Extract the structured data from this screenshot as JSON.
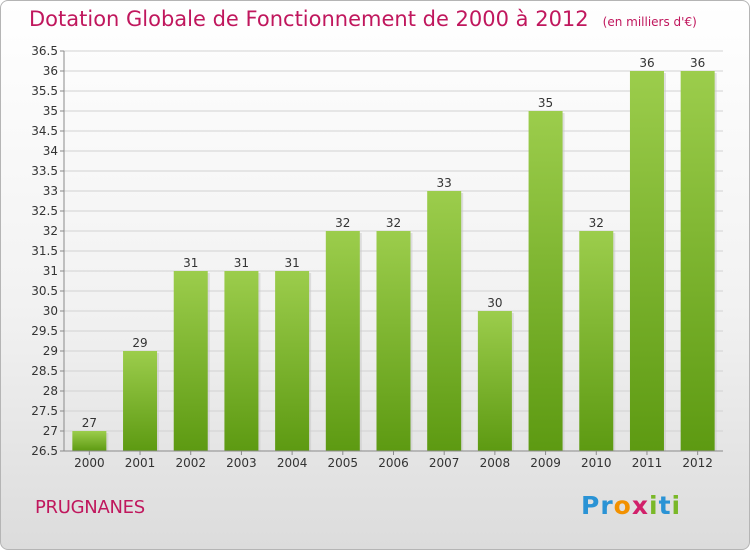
{
  "header": {
    "title": "Dotation Globale de Fonctionnement de 2000 à 2012",
    "unit": "(en milliers d'€)"
  },
  "footer": {
    "commune": "PRUGNANES",
    "logo_text": "Proxiti"
  },
  "colors": {
    "title": "#c0175d",
    "bar_top": "#9ccd4c",
    "bar_bottom": "#5d9a12"
  },
  "chart_data": {
    "type": "bar",
    "title": "Dotation Globale de Fonctionnement de 2000 à 2012",
    "xlabel": "",
    "ylabel": "",
    "categories": [
      "2000",
      "2001",
      "2002",
      "2003",
      "2004",
      "2005",
      "2006",
      "2007",
      "2008",
      "2009",
      "2010",
      "2011",
      "2012"
    ],
    "values": [
      27,
      29,
      31,
      31,
      31,
      32,
      32,
      33,
      30,
      35,
      32,
      36,
      36
    ],
    "ylim": [
      26.5,
      36.5
    ],
    "yticks": [
      "26.5",
      "27",
      "27.5",
      "28",
      "28.5",
      "29",
      "29.5",
      "30",
      "30.5",
      "31",
      "31.5",
      "32",
      "32.5",
      "33",
      "33.5",
      "34",
      "34.5",
      "35",
      "35.5",
      "36",
      "36.5"
    ],
    "grid": true,
    "legend": "none"
  }
}
